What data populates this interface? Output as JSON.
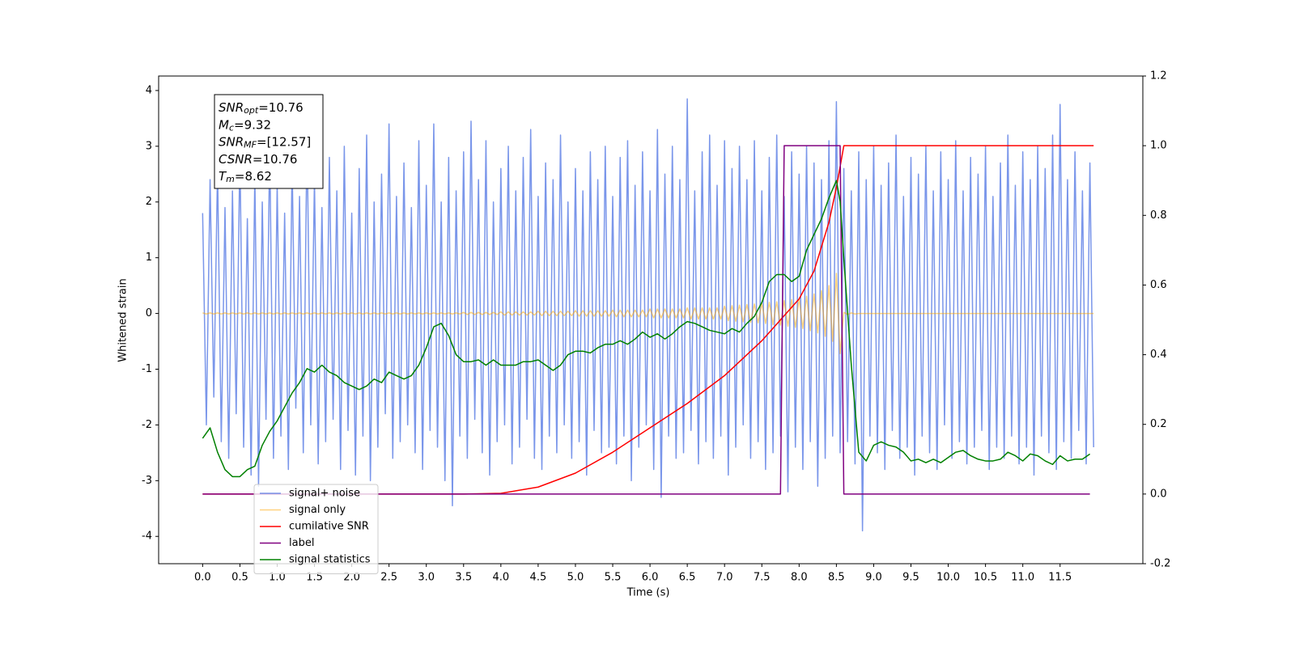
{
  "chart_data": {
    "type": "line",
    "xlabel": "Time (s)",
    "ylabel": "Whitened strain",
    "xlim": [
      -0.59,
      12.61
    ],
    "ylim": [
      -4.49,
      4.26
    ],
    "y2lim": [
      -0.2,
      1.2
    ],
    "xticks": [
      {
        "value": 0,
        "label": "0.0"
      },
      0.5,
      {
        "value": 1,
        "label": "1.0"
      },
      1.5,
      {
        "value": 2,
        "label": "2.0"
      },
      2.5,
      {
        "value": 3,
        "label": "3.0"
      },
      3.5,
      {
        "value": 4,
        "label": "4.0"
      },
      4.5,
      {
        "value": 5,
        "label": "5.0"
      },
      5.5,
      {
        "value": 6,
        "label": "6.0"
      },
      6.5,
      {
        "value": 7,
        "label": "7.0"
      },
      7.5,
      {
        "value": 8,
        "label": "8.0"
      },
      8.5,
      {
        "value": 9,
        "label": "9.0"
      },
      9.5,
      {
        "value": 10,
        "label": "10.0"
      },
      10.5,
      {
        "value": 11,
        "label": "11.0"
      },
      11.5
    ],
    "yticks": [
      -4,
      -3,
      -2,
      -1,
      0,
      1,
      2,
      3,
      4
    ],
    "y2ticks": [
      -0.2,
      {
        "value": 0,
        "label": "0.0"
      },
      0.2,
      0.4,
      0.6,
      0.8,
      {
        "value": 1,
        "label": "1.0"
      },
      1.2
    ],
    "legend_loc": "lower left",
    "annotations": [
      {
        "symbol": "SNR",
        "subscript": "opt",
        "text": "=10.76"
      },
      {
        "symbol": "M",
        "subscript": "c",
        "text": "=9.32"
      },
      {
        "symbol": "SNR",
        "subscript": "MF",
        "text": "=[12.57]"
      },
      {
        "symbol": "CSNR",
        "text": "=10.76"
      },
      {
        "symbol": "T",
        "subscript": "m",
        "text": "=8.62"
      }
    ],
    "x": [
      0,
      0.05,
      0.1,
      0.15,
      0.2,
      0.25,
      0.3,
      0.35,
      0.4,
      0.45,
      0.5,
      0.55,
      0.6,
      0.65,
      0.7,
      0.75,
      0.8,
      0.85,
      0.9,
      0.95,
      1,
      1.05,
      1.1,
      1.15,
      1.2,
      1.25,
      1.3,
      1.35,
      1.4,
      1.45,
      1.5,
      1.55,
      1.6,
      1.65,
      1.7,
      1.75,
      1.8,
      1.85,
      1.9,
      1.95,
      2,
      2.05,
      2.1,
      2.15,
      2.2,
      2.25,
      2.3,
      2.35,
      2.4,
      2.45,
      2.5,
      2.55,
      2.6,
      2.65,
      2.7,
      2.75,
      2.8,
      2.85,
      2.9,
      2.95,
      3,
      3.05,
      3.1,
      3.15,
      3.2,
      3.25,
      3.3,
      3.35,
      3.4,
      3.45,
      3.5,
      3.55,
      3.6,
      3.65,
      3.7,
      3.75,
      3.8,
      3.85,
      3.9,
      3.95,
      4,
      4.05,
      4.1,
      4.15,
      4.2,
      4.25,
      4.3,
      4.35,
      4.4,
      4.45,
      4.5,
      4.55,
      4.6,
      4.65,
      4.7,
      4.75,
      4.8,
      4.85,
      4.9,
      4.95,
      5,
      5.05,
      5.1,
      5.15,
      5.2,
      5.25,
      5.3,
      5.35,
      5.4,
      5.45,
      5.5,
      5.55,
      5.6,
      5.65,
      5.7,
      5.75,
      5.8,
      5.85,
      5.9,
      5.95,
      6,
      6.05,
      6.1,
      6.15,
      6.2,
      6.25,
      6.3,
      6.35,
      6.4,
      6.45,
      6.5,
      6.55,
      6.6,
      6.65,
      6.7,
      6.75,
      6.8,
      6.85,
      6.9,
      6.95,
      7,
      7.05,
      7.1,
      7.15,
      7.2,
      7.25,
      7.3,
      7.35,
      7.4,
      7.45,
      7.5,
      7.55,
      7.6,
      7.65,
      7.7,
      7.75,
      7.8,
      7.85,
      7.9,
      7.95,
      8,
      8.05,
      8.1,
      8.15,
      8.2,
      8.25,
      8.3,
      8.35,
      8.4,
      8.45,
      8.5,
      8.55,
      8.6,
      8.65,
      8.7,
      8.75,
      8.8,
      8.85,
      8.9,
      8.95,
      9,
      9.05,
      9.1,
      9.15,
      9.2,
      9.25,
      9.3,
      9.35,
      9.4,
      9.45,
      9.5,
      9.55,
      9.6,
      9.65,
      9.7,
      9.75,
      9.8,
      9.85,
      9.9,
      9.95,
      10,
      10.05,
      10.1,
      10.15,
      10.2,
      10.25,
      10.3,
      10.35,
      10.4,
      10.45,
      10.5,
      10.55,
      10.6,
      10.65,
      10.7,
      10.75,
      10.8,
      10.85,
      10.9,
      10.95,
      11,
      11.05,
      11.1,
      11.15,
      11.2,
      11.25,
      11.3,
      11.35,
      11.4,
      11.45,
      11.5,
      11.55,
      11.6,
      11.65,
      11.7,
      11.75,
      11.8,
      11.85,
      11.9,
      11.95
    ],
    "series": [
      {
        "name": "signal+ noise",
        "color": "#4169e1",
        "alpha": 0.7,
        "values": [
          1.8,
          -2.0,
          2.4,
          -1.5,
          2.6,
          -2.3,
          1.9,
          -2.6,
          2.2,
          -1.8,
          2.9,
          -2.4,
          1.7,
          -2.9,
          2.5,
          -3.1,
          2.0,
          -1.9,
          3.0,
          -2.6,
          2.3,
          -2.2,
          1.8,
          -2.8,
          2.7,
          -1.7,
          2.1,
          -2.5,
          3.2,
          -2.0,
          2.4,
          -2.7,
          1.9,
          -2.3,
          2.8,
          -1.9,
          2.2,
          -2.8,
          3.0,
          -2.1,
          1.8,
          -2.9,
          2.6,
          -2.2,
          3.2,
          -3.0,
          2.0,
          -2.4,
          2.5,
          -1.8,
          3.4,
          -2.6,
          2.1,
          -2.3,
          2.7,
          -2.0,
          1.9,
          -2.5,
          3.1,
          -2.8,
          2.3,
          -2.1,
          3.4,
          -2.4,
          2.0,
          -3.0,
          2.8,
          -3.45,
          2.2,
          -2.2,
          2.9,
          -2.6,
          3.45,
          -1.9,
          2.4,
          -2.5,
          3.1,
          -2.9,
          2.0,
          -2.3,
          2.6,
          -2.0,
          3.0,
          -2.7,
          2.2,
          -2.4,
          2.8,
          -1.9,
          3.3,
          -2.6,
          2.1,
          -2.8,
          2.7,
          -2.2,
          2.4,
          -2.5,
          3.2,
          -2.0,
          2.0,
          -2.6,
          2.6,
          -2.3,
          2.2,
          -2.9,
          2.9,
          -2.1,
          2.4,
          -2.5,
          3.0,
          -2.4,
          2.1,
          -2.7,
          2.8,
          -2.2,
          3.1,
          -3.0,
          2.3,
          -2.4,
          2.9,
          -2.0,
          2.2,
          -2.8,
          3.3,
          -3.3,
          2.5,
          -2.2,
          3.0,
          -2.6,
          2.4,
          -2.5,
          3.85,
          -2.1,
          2.2,
          -2.7,
          2.9,
          -2.3,
          3.2,
          -2.6,
          2.3,
          -2.2,
          3.1,
          -2.9,
          2.6,
          -2.4,
          3.0,
          -2.0,
          2.4,
          -2.6,
          3.1,
          -2.3,
          2.2,
          -2.8,
          2.8,
          -2.5,
          3.2,
          -2.2,
          2.1,
          -3.2,
          2.9,
          -2.4,
          2.5,
          -2.8,
          3.0,
          -2.3,
          2.7,
          -3.1,
          2.4,
          -2.6,
          3.1,
          -2.2,
          3.8,
          -2.5,
          2.6,
          -2.3,
          2.2,
          -2.7,
          2.9,
          -3.9,
          2.4,
          -2.2,
          3.0,
          -2.5,
          2.3,
          -2.8,
          2.7,
          -2.1,
          3.2,
          -2.6,
          2.1,
          -2.4,
          2.8,
          -2.9,
          2.5,
          -2.2,
          3.0,
          -2.5,
          2.2,
          -2.8,
          2.9,
          -2.0,
          2.4,
          -2.6,
          3.1,
          -2.3,
          2.2,
          -2.7,
          2.8,
          -2.4,
          2.5,
          -2.1,
          3.0,
          -2.8,
          2.1,
          -2.4,
          2.7,
          -2.6,
          3.2,
          -2.2,
          2.3,
          -2.7,
          2.9,
          -2.4,
          2.4,
          -2.9,
          3.0,
          -2.2,
          2.6,
          -2.5,
          3.2,
          -2.8,
          3.75,
          -2.3,
          2.4,
          -2.6,
          2.9,
          -2.1,
          2.2,
          -2.7,
          2.7,
          -2.4
        ]
      },
      {
        "name": "signal only",
        "color": "#ffa500",
        "alpha": 0.5,
        "values": [
          0.01,
          -0.01,
          0.01,
          -0.01,
          0.01,
          -0.01,
          0.01,
          -0.01,
          0.01,
          -0.01,
          0.01,
          -0.01,
          0.01,
          -0.01,
          0.01,
          -0.01,
          0.01,
          -0.01,
          0.01,
          -0.01,
          0.01,
          -0.01,
          0.01,
          -0.01,
          0.01,
          -0.01,
          0.01,
          -0.01,
          0.01,
          -0.01,
          0.01,
          -0.01,
          0.01,
          -0.01,
          0.01,
          -0.01,
          0.01,
          -0.01,
          0.01,
          -0.01,
          0.01,
          -0.01,
          0.01,
          -0.01,
          0.01,
          -0.01,
          0.01,
          -0.01,
          0.01,
          -0.01,
          0.01,
          -0.01,
          0.01,
          -0.01,
          0.01,
          -0.01,
          0.01,
          -0.01,
          0.01,
          -0.01,
          0.01,
          -0.01,
          0.01,
          -0.01,
          0.01,
          -0.01,
          0.01,
          -0.01,
          0.01,
          -0.01,
          0.02,
          -0.02,
          0.02,
          -0.02,
          0.02,
          -0.02,
          0.02,
          -0.02,
          0.02,
          -0.02,
          0.03,
          -0.03,
          0.03,
          -0.03,
          0.03,
          -0.03,
          0.03,
          -0.03,
          0.03,
          -0.03,
          0.04,
          -0.04,
          0.04,
          -0.04,
          0.04,
          -0.04,
          0.04,
          -0.04,
          0.04,
          -0.04,
          0.05,
          -0.05,
          0.05,
          -0.05,
          0.05,
          -0.05,
          0.05,
          -0.05,
          0.05,
          -0.05,
          0.06,
          -0.06,
          0.06,
          -0.06,
          0.06,
          -0.06,
          0.06,
          -0.06,
          0.06,
          -0.06,
          0.08,
          -0.08,
          0.08,
          -0.08,
          0.08,
          -0.08,
          0.08,
          -0.08,
          0.08,
          -0.08,
          0.1,
          -0.1,
          0.1,
          -0.1,
          0.1,
          -0.1,
          0.1,
          -0.1,
          0.1,
          -0.1,
          0.13,
          -0.13,
          0.14,
          -0.14,
          0.15,
          -0.15,
          0.16,
          -0.16,
          0.17,
          -0.17,
          0.18,
          -0.18,
          0.2,
          -0.2,
          0.21,
          -0.21,
          0.23,
          -0.23,
          0.25,
          -0.25,
          0.27,
          -0.27,
          0.31,
          -0.31,
          0.35,
          -0.35,
          0.41,
          -0.41,
          0.5,
          -0.5,
          0.72,
          -0.72,
          0.02,
          -0.02,
          0.01,
          -0.01,
          0,
          0,
          0,
          0,
          0,
          0,
          0,
          0,
          0,
          0,
          0,
          0,
          0,
          0,
          0,
          0,
          0,
          0,
          0,
          0,
          0,
          0,
          0,
          0,
          0,
          0,
          0,
          0,
          0,
          0,
          0,
          0,
          0,
          0,
          0,
          0,
          0,
          0,
          0,
          0,
          0,
          0,
          0,
          0,
          0,
          0,
          0,
          0,
          0,
          0,
          0,
          0,
          0,
          0,
          0,
          0,
          0,
          0,
          0,
          0,
          0,
          0,
          0,
          0
        ]
      },
      {
        "name": "cumilative SNR",
        "color": "#ff0000",
        "axis": "y2",
        "x": [
          0,
          3.5,
          4,
          4.5,
          5,
          5.5,
          6,
          6.5,
          7,
          7.5,
          8,
          8.2,
          8.4,
          8.5,
          8.6,
          11.95
        ],
        "values": [
          0,
          0,
          0.002,
          0.02,
          0.06,
          0.12,
          0.19,
          0.26,
          0.34,
          0.44,
          0.56,
          0.64,
          0.78,
          0.88,
          1.0,
          1.0
        ]
      },
      {
        "name": "label",
        "color": "#800080",
        "axis": "y2",
        "x": [
          0,
          7.75,
          7.8,
          8.55,
          8.6,
          11.9
        ],
        "values": [
          0,
          0,
          1,
          1,
          0,
          0
        ]
      },
      {
        "name": "signal statistics",
        "color": "#008000",
        "axis": "y2",
        "x": [
          0,
          0.1,
          0.2,
          0.3,
          0.4,
          0.5,
          0.6,
          0.7,
          0.8,
          0.9,
          1,
          1.1,
          1.2,
          1.3,
          1.4,
          1.5,
          1.6,
          1.7,
          1.8,
          1.9,
          2,
          2.1,
          2.2,
          2.3,
          2.4,
          2.5,
          2.6,
          2.7,
          2.8,
          2.9,
          3,
          3.1,
          3.2,
          3.3,
          3.4,
          3.5,
          3.6,
          3.7,
          3.8,
          3.9,
          4,
          4.1,
          4.2,
          4.3,
          4.4,
          4.5,
          4.6,
          4.7,
          4.8,
          4.9,
          5,
          5.1,
          5.2,
          5.3,
          5.4,
          5.5,
          5.6,
          5.7,
          5.8,
          5.9,
          6,
          6.1,
          6.2,
          6.3,
          6.4,
          6.5,
          6.6,
          6.7,
          6.8,
          6.9,
          7,
          7.1,
          7.2,
          7.3,
          7.4,
          7.5,
          7.6,
          7.7,
          7.8,
          7.9,
          8,
          8.1,
          8.2,
          8.3,
          8.4,
          8.5,
          8.55,
          8.6,
          8.7,
          8.8,
          8.9,
          9,
          9.1,
          9.2,
          9.3,
          9.4,
          9.5,
          9.6,
          9.7,
          9.8,
          9.9,
          10,
          10.1,
          10.2,
          10.3,
          10.4,
          10.5,
          10.6,
          10.7,
          10.8,
          10.9,
          11,
          11.1,
          11.2,
          11.3,
          11.4,
          11.5,
          11.6,
          11.7,
          11.8,
          11.9
        ],
        "values": [
          0.16,
          0.19,
          0.12,
          0.07,
          0.05,
          0.05,
          0.07,
          0.08,
          0.14,
          0.18,
          0.21,
          0.25,
          0.29,
          0.32,
          0.36,
          0.35,
          0.37,
          0.35,
          0.34,
          0.32,
          0.31,
          0.3,
          0.31,
          0.33,
          0.32,
          0.35,
          0.34,
          0.33,
          0.34,
          0.37,
          0.42,
          0.48,
          0.49,
          0.455,
          0.4,
          0.38,
          0.38,
          0.385,
          0.37,
          0.385,
          0.37,
          0.37,
          0.37,
          0.38,
          0.38,
          0.385,
          0.37,
          0.355,
          0.37,
          0.4,
          0.41,
          0.41,
          0.405,
          0.42,
          0.43,
          0.43,
          0.44,
          0.43,
          0.445,
          0.465,
          0.45,
          0.46,
          0.445,
          0.46,
          0.48,
          0.495,
          0.49,
          0.48,
          0.47,
          0.465,
          0.46,
          0.475,
          0.465,
          0.49,
          0.51,
          0.55,
          0.61,
          0.63,
          0.63,
          0.61,
          0.625,
          0.7,
          0.745,
          0.79,
          0.85,
          0.9,
          0.84,
          0.675,
          0.37,
          0.12,
          0.095,
          0.14,
          0.15,
          0.14,
          0.135,
          0.12,
          0.095,
          0.1,
          0.09,
          0.1,
          0.09,
          0.105,
          0.12,
          0.125,
          0.11,
          0.1,
          0.095,
          0.095,
          0.1,
          0.12,
          0.11,
          0.095,
          0.115,
          0.11,
          0.095,
          0.085,
          0.11,
          0.095,
          0.1,
          0.1,
          0.115
        ]
      }
    ]
  }
}
